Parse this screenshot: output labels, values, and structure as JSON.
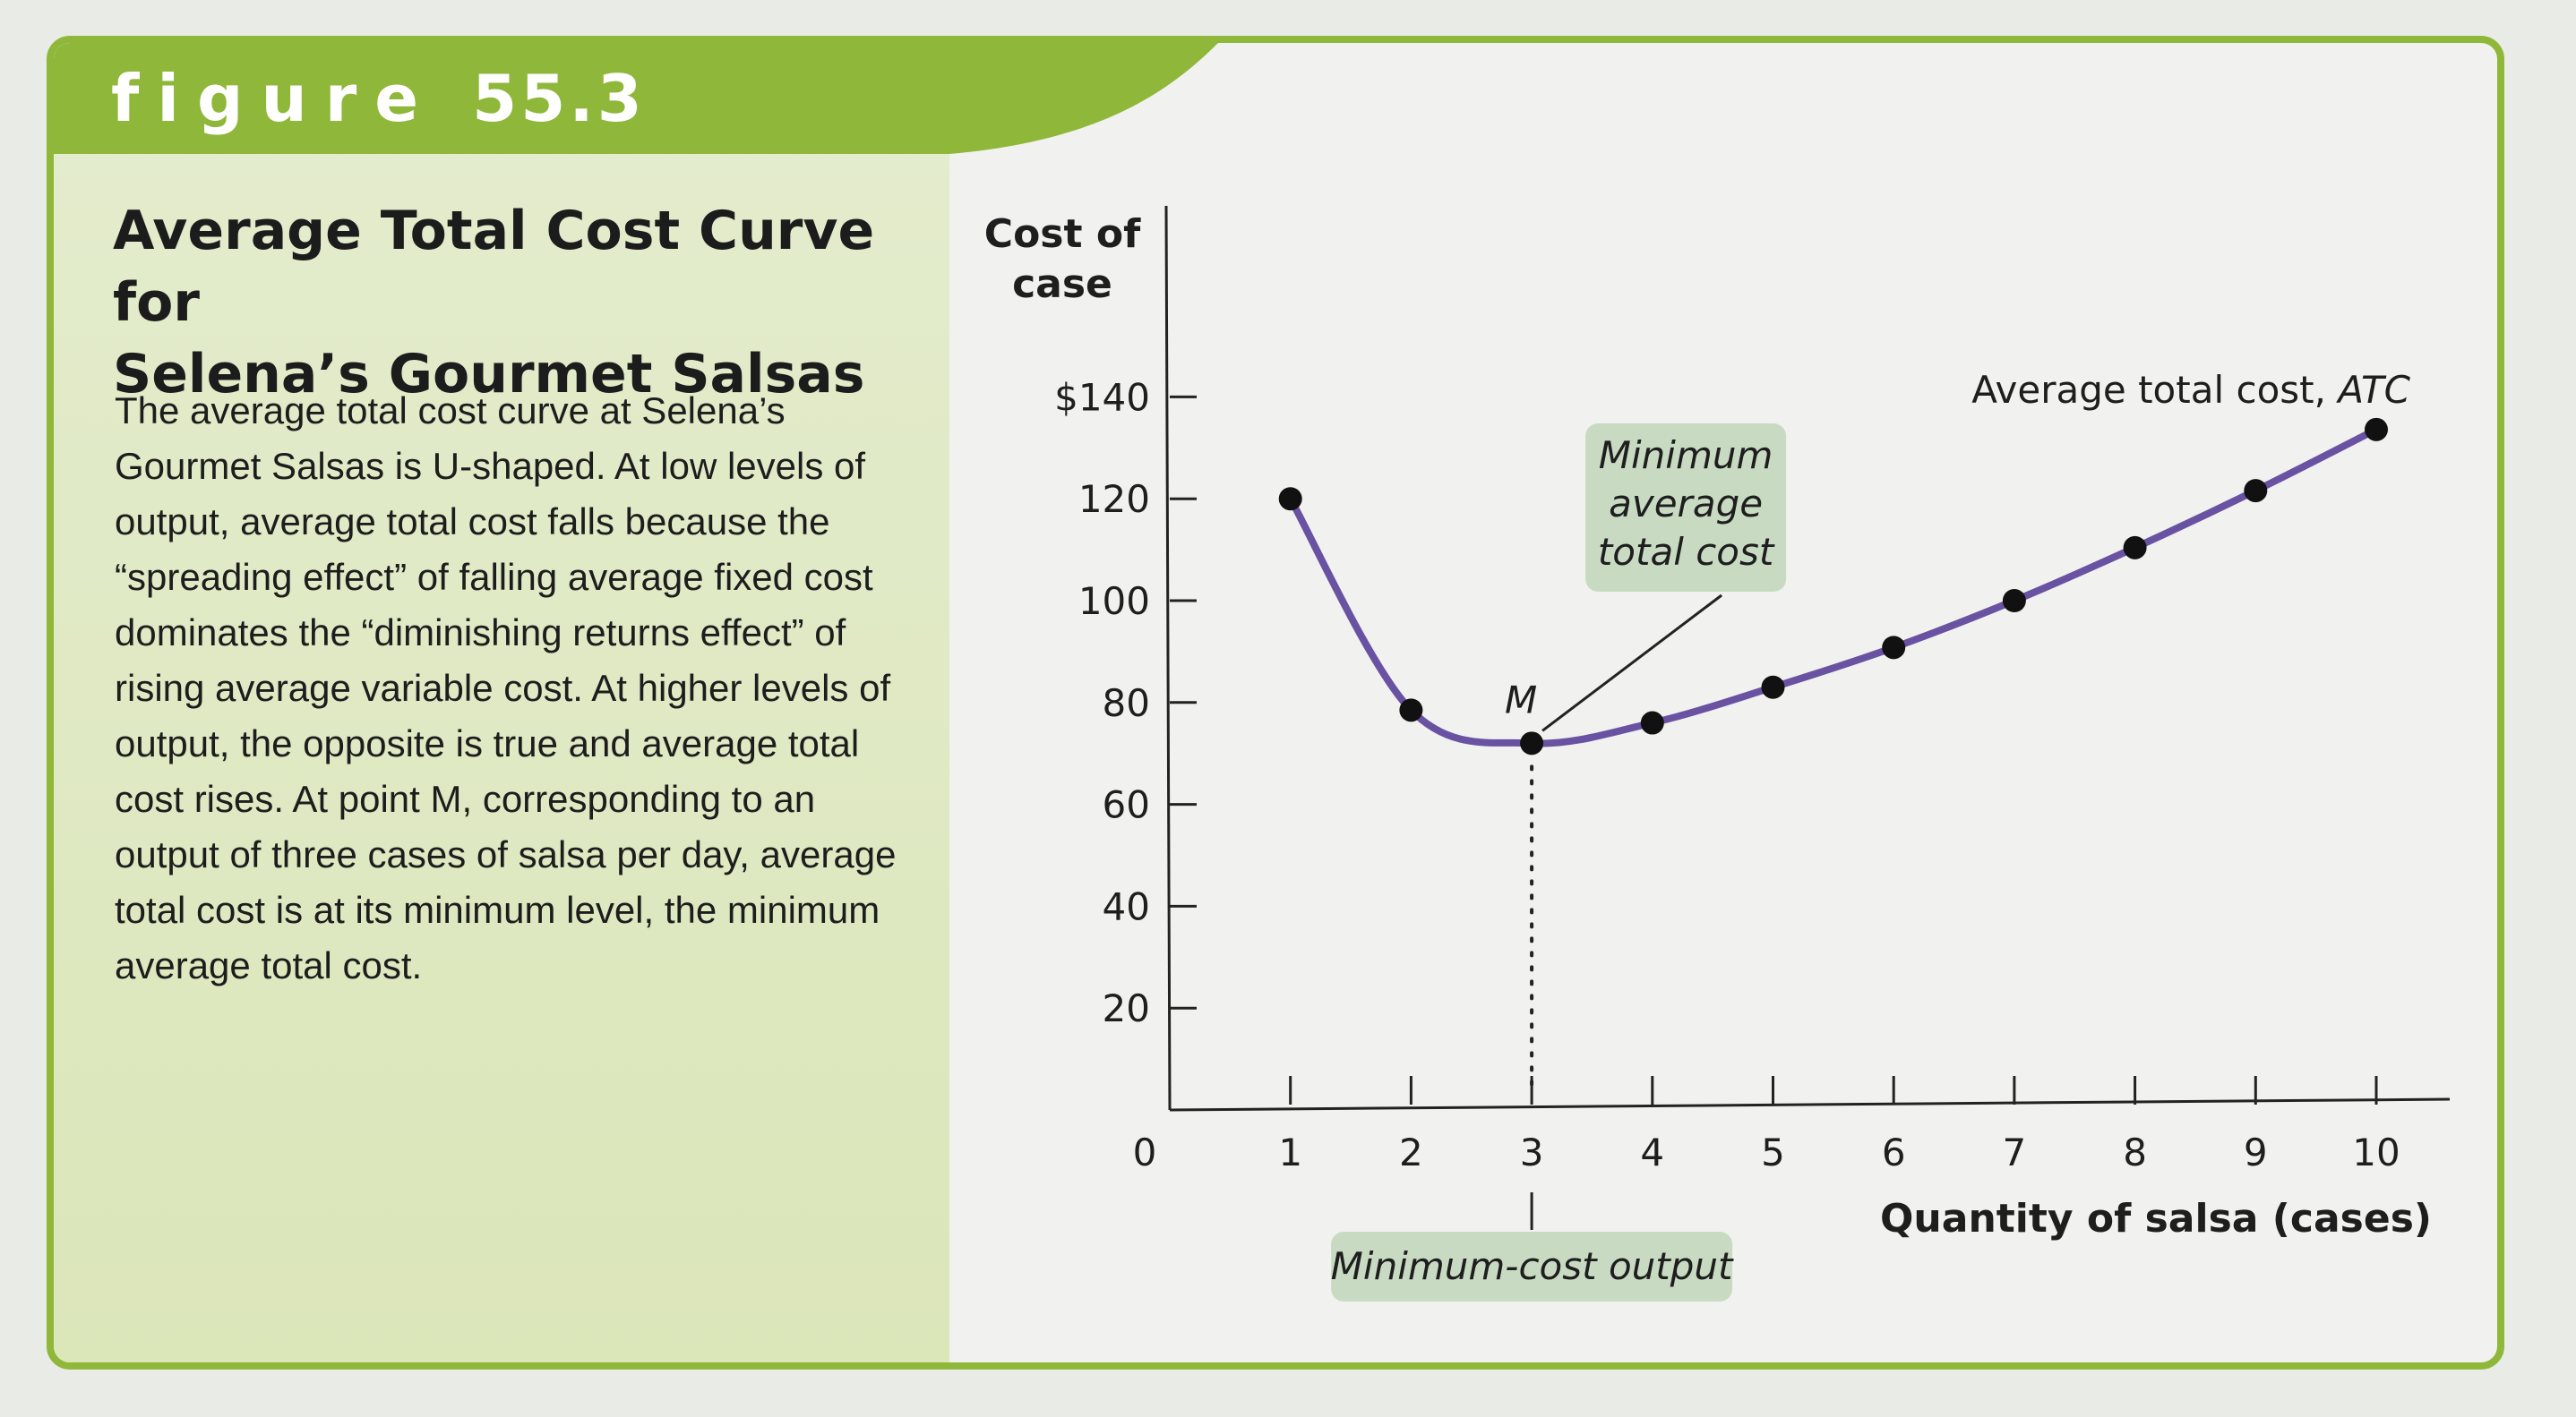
{
  "figure": {
    "label_word": "figure",
    "label_number": "55.3",
    "title_line1": "Average Total Cost Curve for",
    "title_line2": "Selena’s Gourmet Salsas",
    "caption": "The average total cost curve at Selena’s Gourmet Salsas is U-shaped. At low levels of output, average total cost falls because the “spreading effect” of falling average fixed cost dominates the “diminishing returns effect” of rising average variable cost. At higher levels of output, the opposite is true and average total cost rises. At point M, corresponding to an output of three cases of salsa per day, average total cost is at its minimum level, the minimum average total cost."
  },
  "colors": {
    "frame": "#8fb83a",
    "header": "#8fb83a",
    "curve": "#6a52a3",
    "callout": "#c8dbc2"
  },
  "chart_data": {
    "type": "line",
    "ylabel_line1": "Cost of",
    "ylabel_line2": "case",
    "xlabel": "Quantity of salsa (cases)",
    "xlim": [
      0,
      10
    ],
    "ylim": [
      0,
      140
    ],
    "x_ticks": [
      0,
      1,
      2,
      3,
      4,
      5,
      6,
      7,
      8,
      9,
      10
    ],
    "y_ticks": [
      20,
      40,
      60,
      80,
      100,
      120,
      140
    ],
    "y_tick_labels": [
      "20",
      "40",
      "60",
      "80",
      "100",
      "120",
      "$140"
    ],
    "series": [
      {
        "name_prefix": "Average total cost, ",
        "name_italic": "ATC",
        "x": [
          1,
          2,
          3,
          4,
          5,
          6,
          7,
          8,
          9,
          10
        ],
        "y": [
          120,
          78.5,
          72,
          76,
          83,
          90.8,
          100,
          110.4,
          121.6,
          133.6
        ]
      }
    ],
    "annotations": {
      "point_label": "M",
      "min_callout": [
        "Minimum",
        "average",
        "total cost"
      ],
      "output_callout": "Minimum-cost output"
    },
    "grid": false
  }
}
